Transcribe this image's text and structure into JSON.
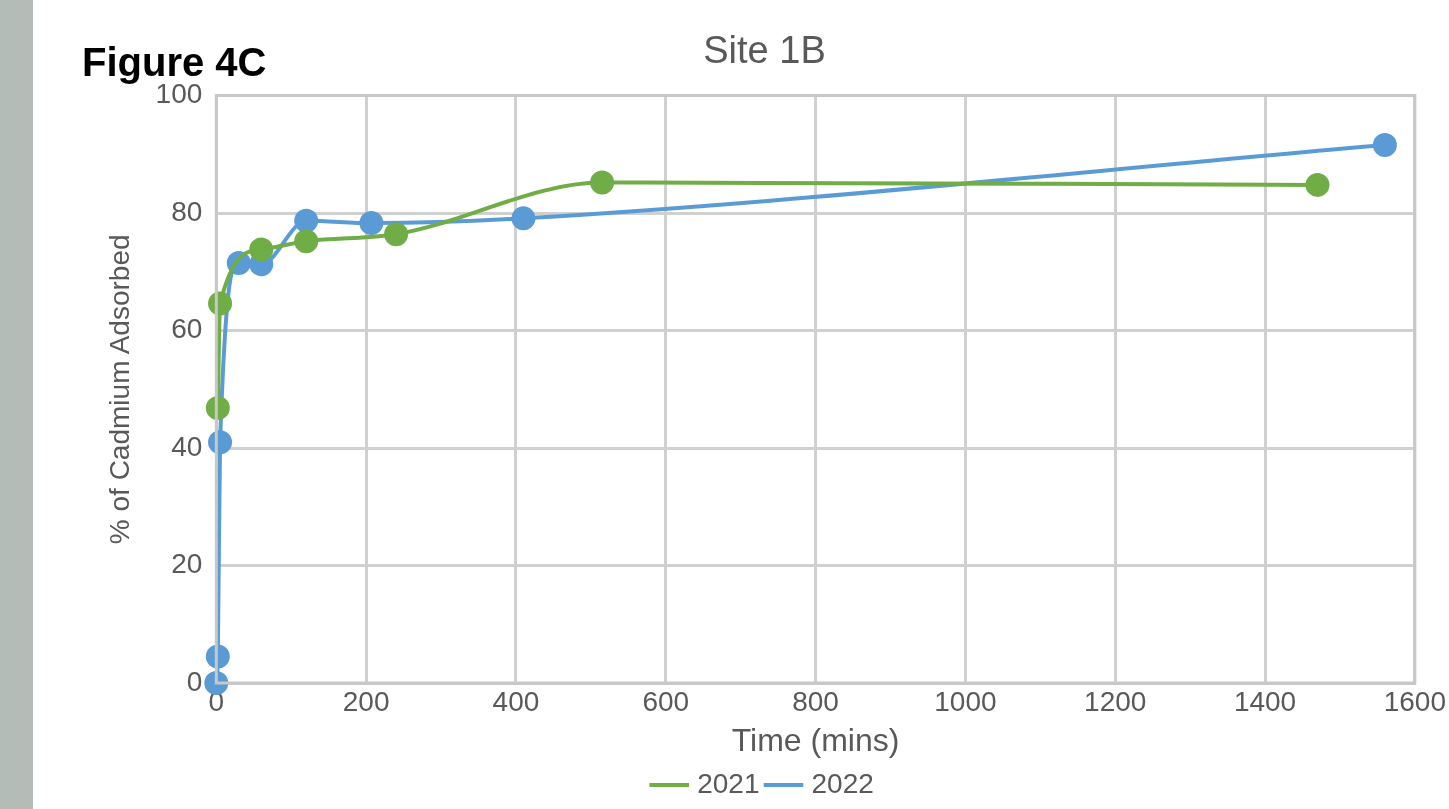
{
  "chart_data": {
    "type": "line",
    "title": "Site 1B",
    "xlabel": "Time (mins)",
    "ylabel": "% of Cadmium Adsorbed",
    "annotations": [
      "Figure 4C"
    ],
    "xlim": [
      0,
      1600
    ],
    "xticks": [
      0,
      200,
      400,
      600,
      800,
      1000,
      1200,
      1400,
      1600
    ],
    "ylim": [
      0,
      100
    ],
    "yticks": [
      0,
      20,
      40,
      60,
      80,
      100
    ],
    "grid": true,
    "legend": "bottom",
    "marker": "circle",
    "line_style": "solid",
    "series": [
      {
        "name": "2021",
        "color": "#70ad47",
        "x": [
          2,
          5,
          60,
          120,
          240,
          515,
          1470
        ],
        "values": [
          46.8,
          64.6,
          73.8,
          75.2,
          76.4,
          85.2,
          84.8
        ]
      },
      {
        "name": "2022",
        "color": "#5b9bd5",
        "x": [
          0,
          2,
          5,
          30,
          60,
          120,
          207,
          410,
          1560
        ],
        "values": [
          0,
          4.5,
          41,
          71.5,
          71.3,
          78.7,
          78.3,
          79.1,
          91.6
        ]
      }
    ]
  }
}
